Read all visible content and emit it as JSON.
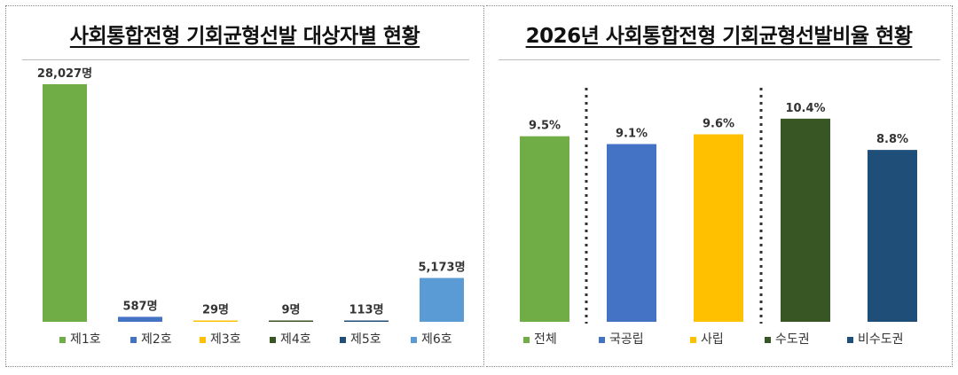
{
  "chart_data": [
    {
      "type": "bar",
      "title": "사회통합전형 기회균형선발 대상자별 현황",
      "categories": [
        "제1호",
        "제2호",
        "제3호",
        "제4호",
        "제5호",
        "제6호"
      ],
      "values": [
        28027,
        587,
        29,
        9,
        113,
        5173
      ],
      "data_labels": [
        "28,027명",
        "587명",
        "29명",
        "9명",
        "113명",
        "5,173명"
      ],
      "colors": [
        "#70AD47",
        "#4472C4",
        "#FFC000",
        "#375623",
        "#1F4E79",
        "#5B9BD5"
      ],
      "xlabel": "",
      "ylabel": "",
      "ylim": [
        0,
        28027
      ],
      "grid": false,
      "legend": "bottom"
    },
    {
      "type": "bar",
      "title": "2026년 사회통합전형 기회균형선발비율 현황",
      "categories": [
        "전체",
        "국공립",
        "사립",
        "수도권",
        "비수도권"
      ],
      "values": [
        9.5,
        9.1,
        9.6,
        10.4,
        8.8
      ],
      "data_labels": [
        "9.5%",
        "9.1%",
        "9.6%",
        "10.4%",
        "8.8%"
      ],
      "colors": [
        "#70AD47",
        "#4472C4",
        "#FFC000",
        "#375623",
        "#1F4E79"
      ],
      "xlabel": "",
      "ylabel": "",
      "ylim": [
        0,
        12.3
      ],
      "grid": false,
      "legend": "bottom"
    }
  ]
}
